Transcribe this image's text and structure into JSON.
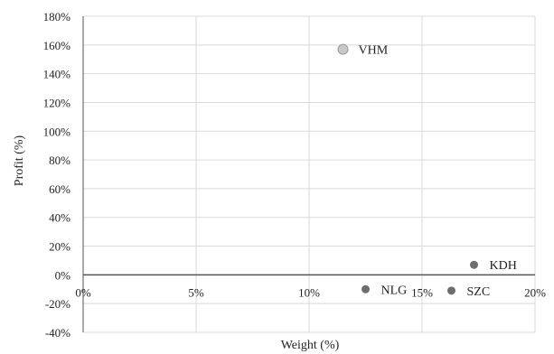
{
  "chart_data": {
    "type": "scatter",
    "xlabel": "Weight (%)",
    "ylabel": "Profit (%)",
    "xlim": [
      0,
      20
    ],
    "ylim": [
      -40,
      180
    ],
    "x_ticks": [
      0,
      5,
      10,
      15,
      20
    ],
    "y_ticks": [
      -40,
      -20,
      0,
      20,
      40,
      60,
      80,
      100,
      120,
      140,
      160,
      180
    ],
    "x_tick_labels": [
      "0%",
      "5%",
      "10%",
      "15%",
      "20%"
    ],
    "y_tick_labels": [
      "-40%",
      "-20%",
      "0%",
      "20%",
      "40%",
      "60%",
      "80%",
      "100%",
      "120%",
      "140%",
      "160%",
      "180%"
    ],
    "grid": true,
    "points": [
      {
        "label": "VHM",
        "x": 11.5,
        "y": 157
      },
      {
        "label": "KDH",
        "x": 17.3,
        "y": 7
      },
      {
        "label": "NLG",
        "x": 12.5,
        "y": -10
      },
      {
        "label": "SZC",
        "x": 16.3,
        "y": -11
      }
    ],
    "colors": {
      "marker": "#6e6e6e",
      "grid": "#d9d9d9",
      "axis": "#555555"
    }
  }
}
